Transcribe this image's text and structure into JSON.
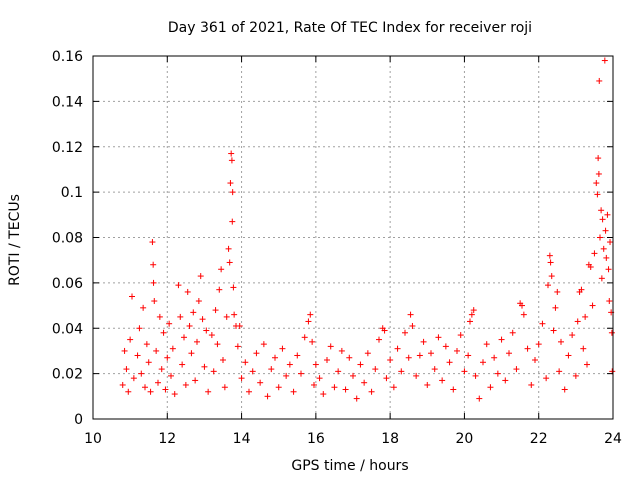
{
  "chart_data": {
    "type": "scatter",
    "title": "Day 361 of 2021, Rate Of TEC Index for receiver roji",
    "xlabel": "GPS time / hours",
    "ylabel": "ROTI / TECUs",
    "xlim": [
      10,
      24
    ],
    "ylim": [
      0,
      0.16
    ],
    "x_ticks": [
      10,
      12,
      14,
      16,
      18,
      20,
      22,
      24
    ],
    "x_tick_labels": [
      "10",
      "12",
      "14",
      "16",
      "18",
      "20",
      "22",
      "24"
    ],
    "y_ticks": [
      0,
      0.02,
      0.04,
      0.06,
      0.08,
      0.1,
      0.12,
      0.14,
      0.16
    ],
    "y_tick_labels": [
      "0",
      "0.02",
      "0.04",
      "0.06",
      "0.08",
      "0.1",
      "0.12",
      "0.14",
      "0.16"
    ],
    "grid": true,
    "marker": "+",
    "series": [
      {
        "name": "ROTI",
        "color": "#ff0000",
        "points": [
          [
            10.8,
            0.015
          ],
          [
            10.85,
            0.03
          ],
          [
            10.9,
            0.022
          ],
          [
            10.95,
            0.012
          ],
          [
            11.0,
            0.035
          ],
          [
            11.05,
            0.054
          ],
          [
            11.1,
            0.018
          ],
          [
            11.2,
            0.028
          ],
          [
            11.25,
            0.04
          ],
          [
            11.3,
            0.02
          ],
          [
            11.35,
            0.049
          ],
          [
            11.4,
            0.014
          ],
          [
            11.45,
            0.033
          ],
          [
            11.5,
            0.025
          ],
          [
            11.55,
            0.012
          ],
          [
            11.6,
            0.078
          ],
          [
            11.62,
            0.068
          ],
          [
            11.63,
            0.06
          ],
          [
            11.65,
            0.052
          ],
          [
            11.7,
            0.03
          ],
          [
            11.75,
            0.016
          ],
          [
            11.8,
            0.045
          ],
          [
            11.85,
            0.022
          ],
          [
            11.9,
            0.038
          ],
          [
            11.95,
            0.013
          ],
          [
            12.0,
            0.027
          ],
          [
            12.05,
            0.042
          ],
          [
            12.1,
            0.019
          ],
          [
            12.15,
            0.031
          ],
          [
            12.2,
            0.011
          ],
          [
            12.3,
            0.059
          ],
          [
            12.35,
            0.045
          ],
          [
            12.4,
            0.024
          ],
          [
            12.45,
            0.036
          ],
          [
            12.5,
            0.015
          ],
          [
            12.55,
            0.056
          ],
          [
            12.6,
            0.041
          ],
          [
            12.65,
            0.029
          ],
          [
            12.7,
            0.047
          ],
          [
            12.75,
            0.017
          ],
          [
            12.8,
            0.034
          ],
          [
            12.85,
            0.052
          ],
          [
            12.9,
            0.063
          ],
          [
            12.95,
            0.044
          ],
          [
            13.0,
            0.023
          ],
          [
            13.05,
            0.039
          ],
          [
            13.1,
            0.012
          ],
          [
            13.2,
            0.037
          ],
          [
            13.25,
            0.021
          ],
          [
            13.3,
            0.048
          ],
          [
            13.35,
            0.033
          ],
          [
            13.4,
            0.057
          ],
          [
            13.45,
            0.066
          ],
          [
            13.5,
            0.026
          ],
          [
            13.55,
            0.014
          ],
          [
            13.6,
            0.045
          ],
          [
            13.65,
            0.075
          ],
          [
            13.68,
            0.069
          ],
          [
            13.7,
            0.104
          ],
          [
            13.72,
            0.117
          ],
          [
            13.74,
            0.114
          ],
          [
            13.75,
            0.087
          ],
          [
            13.76,
            0.1
          ],
          [
            13.78,
            0.058
          ],
          [
            13.8,
            0.046
          ],
          [
            13.85,
            0.041
          ],
          [
            13.9,
            0.032
          ],
          [
            13.95,
            0.041
          ],
          [
            14.0,
            0.018
          ],
          [
            14.1,
            0.025
          ],
          [
            14.2,
            0.012
          ],
          [
            14.3,
            0.021
          ],
          [
            14.4,
            0.029
          ],
          [
            14.5,
            0.016
          ],
          [
            14.6,
            0.033
          ],
          [
            14.7,
            0.01
          ],
          [
            14.8,
            0.022
          ],
          [
            14.9,
            0.027
          ],
          [
            15.0,
            0.014
          ],
          [
            15.1,
            0.031
          ],
          [
            15.2,
            0.019
          ],
          [
            15.3,
            0.024
          ],
          [
            15.4,
            0.012
          ],
          [
            15.5,
            0.028
          ],
          [
            15.6,
            0.02
          ],
          [
            15.7,
            0.036
          ],
          [
            15.8,
            0.043
          ],
          [
            15.85,
            0.046
          ],
          [
            15.9,
            0.034
          ],
          [
            15.95,
            0.015
          ],
          [
            16.0,
            0.024
          ],
          [
            16.1,
            0.018
          ],
          [
            16.2,
            0.011
          ],
          [
            16.3,
            0.026
          ],
          [
            16.4,
            0.032
          ],
          [
            16.5,
            0.014
          ],
          [
            16.6,
            0.021
          ],
          [
            16.7,
            0.03
          ],
          [
            16.8,
            0.013
          ],
          [
            16.9,
            0.027
          ],
          [
            17.0,
            0.019
          ],
          [
            17.1,
            0.009
          ],
          [
            17.2,
            0.024
          ],
          [
            17.3,
            0.016
          ],
          [
            17.4,
            0.029
          ],
          [
            17.5,
            0.012
          ],
          [
            17.6,
            0.022
          ],
          [
            17.7,
            0.035
          ],
          [
            17.8,
            0.04
          ],
          [
            17.85,
            0.039
          ],
          [
            17.9,
            0.018
          ],
          [
            18.0,
            0.026
          ],
          [
            18.1,
            0.014
          ],
          [
            18.2,
            0.031
          ],
          [
            18.3,
            0.021
          ],
          [
            18.4,
            0.038
          ],
          [
            18.5,
            0.027
          ],
          [
            18.55,
            0.046
          ],
          [
            18.6,
            0.041
          ],
          [
            18.7,
            0.019
          ],
          [
            18.8,
            0.028
          ],
          [
            18.9,
            0.034
          ],
          [
            19.0,
            0.015
          ],
          [
            19.1,
            0.029
          ],
          [
            19.2,
            0.022
          ],
          [
            19.3,
            0.036
          ],
          [
            19.4,
            0.017
          ],
          [
            19.5,
            0.032
          ],
          [
            19.6,
            0.025
          ],
          [
            19.7,
            0.013
          ],
          [
            19.8,
            0.03
          ],
          [
            19.9,
            0.037
          ],
          [
            20.0,
            0.021
          ],
          [
            20.1,
            0.028
          ],
          [
            20.15,
            0.043
          ],
          [
            20.2,
            0.046
          ],
          [
            20.25,
            0.048
          ],
          [
            20.3,
            0.019
          ],
          [
            20.4,
            0.009
          ],
          [
            20.5,
            0.025
          ],
          [
            20.6,
            0.033
          ],
          [
            20.7,
            0.014
          ],
          [
            20.8,
            0.027
          ],
          [
            20.9,
            0.02
          ],
          [
            21.0,
            0.035
          ],
          [
            21.1,
            0.017
          ],
          [
            21.2,
            0.029
          ],
          [
            21.3,
            0.038
          ],
          [
            21.4,
            0.022
          ],
          [
            21.5,
            0.051
          ],
          [
            21.55,
            0.05
          ],
          [
            21.6,
            0.046
          ],
          [
            21.7,
            0.031
          ],
          [
            21.8,
            0.015
          ],
          [
            21.9,
            0.026
          ],
          [
            22.0,
            0.033
          ],
          [
            22.1,
            0.042
          ],
          [
            22.2,
            0.018
          ],
          [
            22.25,
            0.059
          ],
          [
            22.3,
            0.072
          ],
          [
            22.32,
            0.069
          ],
          [
            22.35,
            0.063
          ],
          [
            22.4,
            0.039
          ],
          [
            22.45,
            0.049
          ],
          [
            22.5,
            0.056
          ],
          [
            22.55,
            0.021
          ],
          [
            22.6,
            0.034
          ],
          [
            22.7,
            0.013
          ],
          [
            22.8,
            0.028
          ],
          [
            22.9,
            0.037
          ],
          [
            23.0,
            0.019
          ],
          [
            23.05,
            0.043
          ],
          [
            23.1,
            0.056
          ],
          [
            23.15,
            0.057
          ],
          [
            23.2,
            0.031
          ],
          [
            23.25,
            0.045
          ],
          [
            23.3,
            0.024
          ],
          [
            23.35,
            0.068
          ],
          [
            23.4,
            0.067
          ],
          [
            23.45,
            0.05
          ],
          [
            23.5,
            0.073
          ],
          [
            23.55,
            0.104
          ],
          [
            23.58,
            0.099
          ],
          [
            23.6,
            0.115
          ],
          [
            23.62,
            0.108
          ],
          [
            23.63,
            0.149
          ],
          [
            23.65,
            0.08
          ],
          [
            23.68,
            0.092
          ],
          [
            23.7,
            0.062
          ],
          [
            23.72,
            0.088
          ],
          [
            23.75,
            0.075
          ],
          [
            23.78,
            0.158
          ],
          [
            23.8,
            0.083
          ],
          [
            23.82,
            0.071
          ],
          [
            23.85,
            0.09
          ],
          [
            23.88,
            0.066
          ],
          [
            23.9,
            0.052
          ],
          [
            23.92,
            0.078
          ],
          [
            23.95,
            0.047
          ],
          [
            23.97,
            0.038
          ],
          [
            23.98,
            0.021
          ]
        ]
      }
    ]
  }
}
